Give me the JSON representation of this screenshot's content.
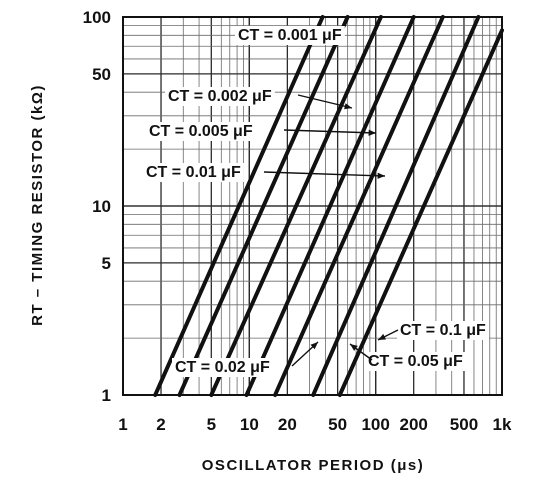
{
  "chart_data": {
    "type": "line",
    "xscale": "log",
    "yscale": "log",
    "xlim": [
      1,
      1000
    ],
    "ylim": [
      1,
      100
    ],
    "grid": true,
    "legend": "inline",
    "xlabel": "OSCILLATOR PERIOD (μs)",
    "ylabel": "RT – TIMING RESISTOR (kΩ)",
    "xticks": [
      {
        "v": 1,
        "label": "1"
      },
      {
        "v": 2,
        "label": "2"
      },
      {
        "v": 5,
        "label": "5"
      },
      {
        "v": 10,
        "label": "10"
      },
      {
        "v": 20,
        "label": "20"
      },
      {
        "v": 50,
        "label": "50"
      },
      {
        "v": 100,
        "label": "100"
      },
      {
        "v": 200,
        "label": "200"
      },
      {
        "v": 500,
        "label": "500"
      },
      {
        "v": 1000,
        "label": "1k"
      }
    ],
    "yticks": [
      {
        "v": 1,
        "label": "1"
      },
      {
        "v": 5,
        "label": "5"
      },
      {
        "v": 10,
        "label": "10"
      },
      {
        "v": 50,
        "label": "50"
      },
      {
        "v": 100,
        "label": "100"
      }
    ],
    "series": [
      {
        "name": "CT = 0.001 μF",
        "x": [
          1.8,
          38
        ],
        "y": [
          1,
          100
        ]
      },
      {
        "name": "CT = 0.002 μF",
        "x": [
          2.8,
          60
        ],
        "y": [
          1,
          100
        ]
      },
      {
        "name": "CT = 0.005 μF",
        "x": [
          5.0,
          110
        ],
        "y": [
          1,
          100
        ]
      },
      {
        "name": "CT = 0.01 μF",
        "x": [
          9.5,
          200
        ],
        "y": [
          1,
          100
        ]
      },
      {
        "name": "CT = 0.02 μF",
        "x": [
          16,
          340
        ],
        "y": [
          1,
          100
        ]
      },
      {
        "name": "CT = 0.05 μF",
        "x": [
          32,
          650
        ],
        "y": [
          1,
          100
        ]
      },
      {
        "name": "CT = 0.1 μF",
        "x": [
          52,
          1000
        ],
        "y": [
          1,
          85
        ]
      }
    ],
    "annotations": [
      {
        "text": "CT = 0.001 μF",
        "series": 0
      },
      {
        "text": "CT = 0.002 μF",
        "series": 1
      },
      {
        "text": "CT = 0.005 μF",
        "series": 2
      },
      {
        "text": "CT = 0.01 μF",
        "series": 3
      },
      {
        "text": "CT = 0.02 μF",
        "series": 4
      },
      {
        "text": "CT = 0.05 μF",
        "series": 5
      },
      {
        "text": "CT = 0.1 μF",
        "series": 6
      }
    ]
  }
}
